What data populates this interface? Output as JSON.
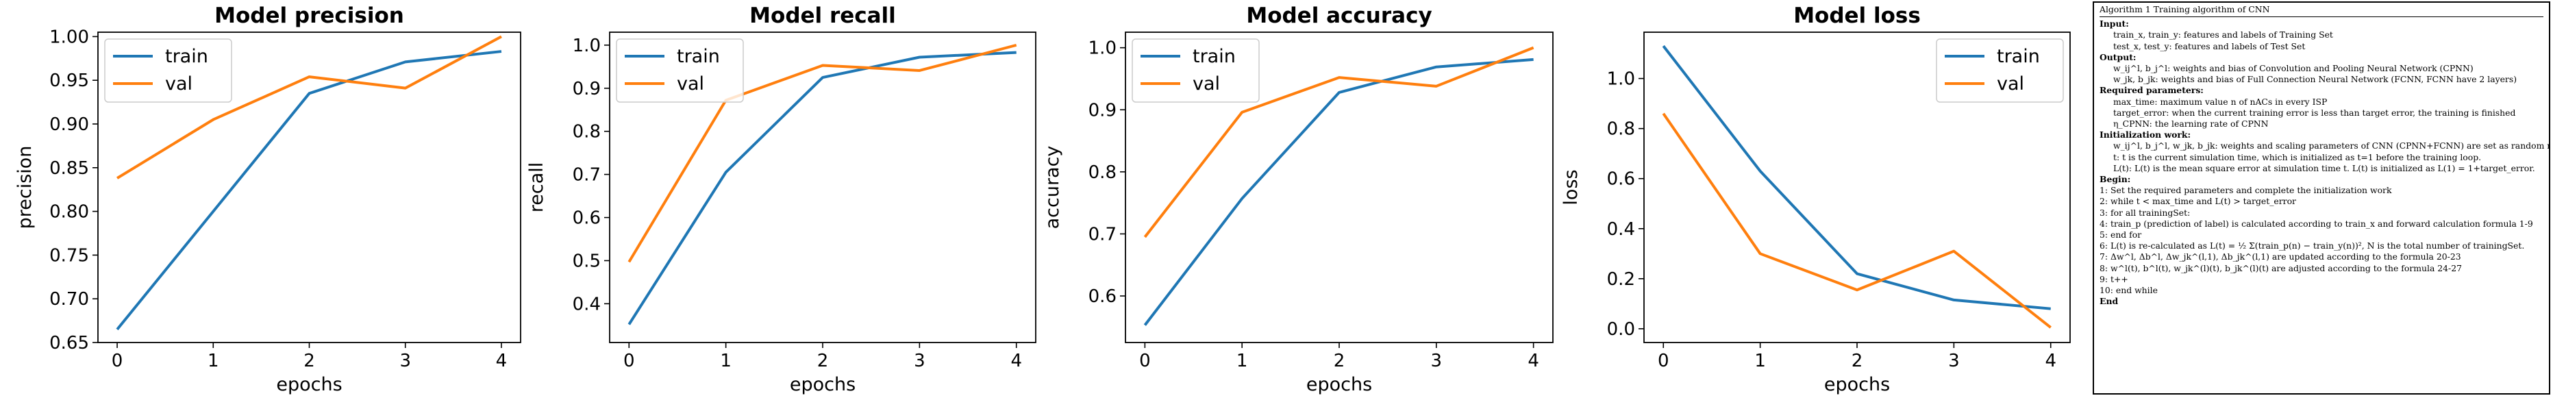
{
  "chart_data": [
    {
      "type": "line",
      "title": "Model precision",
      "xlabel": "epochs",
      "ylabel": "precision",
      "x": [
        0,
        1,
        2,
        3,
        4
      ],
      "xticks": [
        "0",
        "1",
        "2",
        "3",
        "4"
      ],
      "ylim": [
        0.65,
        1.005
      ],
      "yticks": [
        "0.65",
        "0.70",
        "0.75",
        "0.80",
        "0.85",
        "0.90",
        "0.95",
        "1.00"
      ],
      "legend": "top-left",
      "series": [
        {
          "name": "train",
          "color": "#1f77b4",
          "values": [
            0.665,
            0.8,
            0.935,
            0.971,
            0.983
          ]
        },
        {
          "name": "val",
          "color": "#ff7f0e",
          "values": [
            0.838,
            0.905,
            0.954,
            0.941,
            1.0
          ]
        }
      ]
    },
    {
      "type": "line",
      "title": "Model recall",
      "xlabel": "epochs",
      "ylabel": "recall",
      "x": [
        0,
        1,
        2,
        3,
        4
      ],
      "xticks": [
        "0",
        "1",
        "2",
        "3",
        "4"
      ],
      "ylim": [
        0.31,
        1.03
      ],
      "yticks": [
        "0.4",
        "0.5",
        "0.6",
        "0.7",
        "0.8",
        "0.9",
        "1.0"
      ],
      "legend": "top-left",
      "series": [
        {
          "name": "train",
          "color": "#1f77b4",
          "values": [
            0.352,
            0.705,
            0.925,
            0.972,
            0.983
          ]
        },
        {
          "name": "val",
          "color": "#ff7f0e",
          "values": [
            0.497,
            0.872,
            0.953,
            0.941,
            1.0
          ]
        }
      ]
    },
    {
      "type": "line",
      "title": "Model accuracy",
      "xlabel": "epochs",
      "ylabel": "accuracy",
      "x": [
        0,
        1,
        2,
        3,
        4
      ],
      "xticks": [
        "0",
        "1",
        "2",
        "3",
        "4"
      ],
      "ylim": [
        0.525,
        1.025
      ],
      "yticks": [
        "0.6",
        "0.7",
        "0.8",
        "0.9",
        "1.0"
      ],
      "legend": "top-left",
      "series": [
        {
          "name": "train",
          "color": "#1f77b4",
          "values": [
            0.553,
            0.757,
            0.928,
            0.969,
            0.981
          ]
        },
        {
          "name": "val",
          "color": "#ff7f0e",
          "values": [
            0.695,
            0.896,
            0.952,
            0.938,
            1.0
          ]
        }
      ]
    },
    {
      "type": "line",
      "title": "Model loss",
      "xlabel": "epochs",
      "ylabel": "loss",
      "x": [
        0,
        1,
        2,
        3,
        4
      ],
      "xticks": [
        "0",
        "1",
        "2",
        "3",
        "4"
      ],
      "ylim": [
        -0.055,
        1.185
      ],
      "yticks": [
        "0.0",
        "0.2",
        "0.4",
        "0.6",
        "0.8",
        "1.0"
      ],
      "legend": "top-right",
      "series": [
        {
          "name": "train",
          "color": "#1f77b4",
          "values": [
            1.13,
            0.63,
            0.22,
            0.115,
            0.08
          ]
        },
        {
          "name": "val",
          "color": "#ff7f0e",
          "values": [
            0.86,
            0.3,
            0.155,
            0.31,
            0.005
          ]
        }
      ]
    }
  ],
  "algorithm": {
    "title": "Algorithm 1   Training algorithm of CNN",
    "lines": [
      {
        "t": "Input:",
        "c": "hd"
      },
      {
        "t": "train_x, train_y: features and labels of Training Set",
        "c": "ind"
      },
      {
        "t": "test_x, test_y: features and labels of Test Set",
        "c": "ind"
      },
      {
        "t": "Output:",
        "c": "hd"
      },
      {
        "t": "w_ij^l, b_j^l: weights and bias of Convolution and Pooling Neural Network (CPNN)",
        "c": "ind"
      },
      {
        "t": "w_jk, b_jk: weights and bias of Full Connection Neural Network (FCNN, FCNN have 2 layers)",
        "c": "ind"
      },
      {
        "t": "Required parameters:",
        "c": "hd"
      },
      {
        "t": "max_time: maximum value n of nACs in every ISP",
        "c": "ind"
      },
      {
        "t": "target_error: when the current training error is less than target error, the training is finished",
        "c": "ind"
      },
      {
        "t": "η_CPNN: the learning rate of CPNN",
        "c": "ind"
      },
      {
        "t": "Initialization work:",
        "c": "hd"
      },
      {
        "t": "w_ij^l, b_j^l, w_jk, b_jk: weights and scaling parameters of CNN (CPNN+FCNN) are set as random numbers.",
        "c": "ind"
      },
      {
        "t": "t: t is the current simulation time, which is initialized as t=1 before the training loop.",
        "c": "ind"
      },
      {
        "t": "L(t): L(t) is the mean square error at simulation time t. L(t) is initialized as L(1) = 1+target_error.",
        "c": "ind"
      },
      {
        "t": "Begin:",
        "c": "hd"
      },
      {
        "t": "1:   Set the required parameters and complete the initialization work",
        "c": "ind0"
      },
      {
        "t": "2:   while t < max_time and L(t) > target_error",
        "c": "ind0"
      },
      {
        "t": "3:       for all trainingSet:",
        "c": "ind0"
      },
      {
        "t": "4:           train_p (prediction of label) is calculated according to train_x and forward calculation formula 1-9",
        "c": "ind0"
      },
      {
        "t": "5:       end for",
        "c": "ind0"
      },
      {
        "t": "6:       L(t) is re-calculated as L(t) = ½ Σ(train_p(n) − train_y(n))², N is the total number of trainingSet.",
        "c": "ind0"
      },
      {
        "t": "7:       Δw^l, Δb^l, Δw_jk^(l,1), Δb_jk^(l,1) are updated according to the formula 20-23",
        "c": "ind0"
      },
      {
        "t": "8:       w^l(t), b^l(t), w_jk^(l)(t), b_jk^(l)(t) are adjusted according to the formula 24-27",
        "c": "ind0"
      },
      {
        "t": "9:       t++",
        "c": "ind0"
      },
      {
        "t": "10:  end while",
        "c": "ind0"
      },
      {
        "t": "End",
        "c": "hd"
      }
    ]
  }
}
